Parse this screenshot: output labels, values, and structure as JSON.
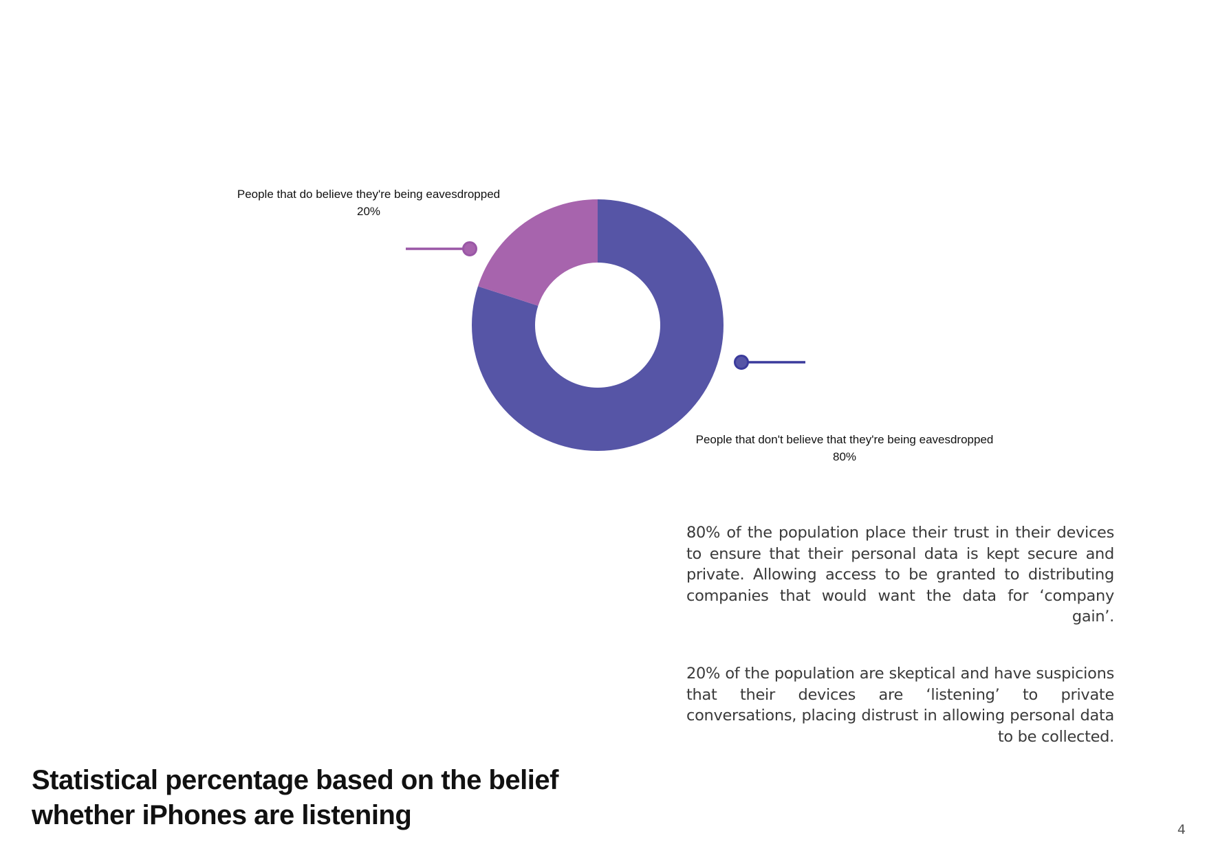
{
  "chart_data": {
    "type": "pie",
    "variant": "donut",
    "slices": [
      {
        "label": "People that don't believe that they're being eavesdropped",
        "value": 80,
        "display": "80%",
        "color": "#5655a6",
        "callout_color": "#3b3b9c"
      },
      {
        "label": "People that do believe they're being eavesdropped",
        "value": 20,
        "display": "20%",
        "color": "#a764ad",
        "callout_color": "#9a57a6"
      }
    ]
  },
  "text": {
    "paragraph_trust": "80% of the population place their trust in their devices to ensure that their personal data is kept secure and private. Allowing access to be granted to distributing companies that would want the data for ‘company gain’.",
    "paragraph_skeptical": "20% of the population are skeptical and have suspicions that their devices are ‘listening’ to private conversations, placing distrust in allowing personal data to be collected.",
    "title": "Statistical percentage based on the belief whether iPhones are listening",
    "page_number": "4"
  }
}
